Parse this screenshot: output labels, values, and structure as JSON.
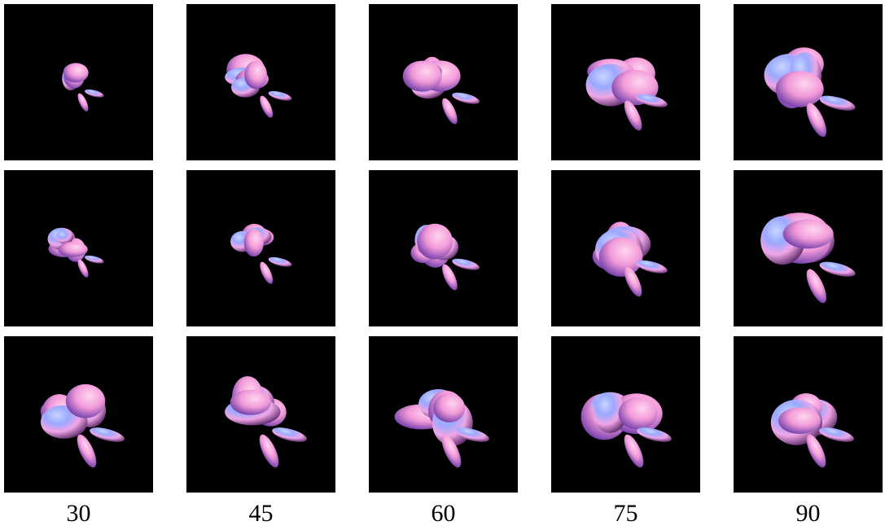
{
  "column_labels": [
    30,
    45,
    60,
    75,
    90
  ]
}
